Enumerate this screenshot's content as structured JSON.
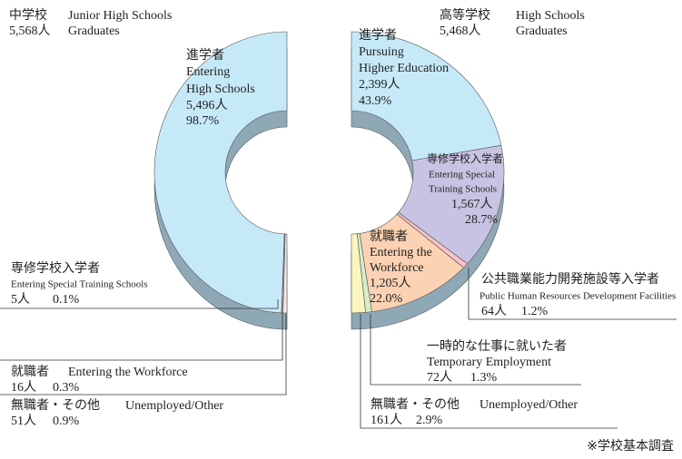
{
  "chart_data": [
    {
      "type": "pie",
      "title_ja": "中学校",
      "title_en": [
        "Junior High Schools",
        "Graduates"
      ],
      "total": 5568,
      "total_label": "5,568人",
      "segments": [
        {
          "name_lines": [
            "進学者",
            "Entering",
            "High Schools"
          ],
          "color": "#c6e9f8",
          "value": 5496,
          "value_label": "5,496人",
          "percent": 98.7,
          "percent_label": "98.7%"
        },
        {
          "name_lines": [
            "専修学校入学者",
            "Entering Special Training Schools"
          ],
          "color": "#c9c3e3",
          "value": 5,
          "value_label": "5人",
          "percent": 0.1,
          "percent_label": "0.1%"
        },
        {
          "name_lines": [
            "就職者",
            "Entering the Workforce"
          ],
          "color": "#f6c3c8",
          "value": 16,
          "value_label": "16人",
          "percent": 0.3,
          "percent_label": "0.3%"
        },
        {
          "name_lines": [
            "無職者・その他",
            "Unemployed/Other"
          ],
          "color": "#f4e9ee",
          "value": 51,
          "value_label": "51人",
          "percent": 0.9,
          "percent_label": "0.9%"
        }
      ]
    },
    {
      "type": "pie",
      "title_ja": "高等学校",
      "title_en": [
        "High Schools",
        "Graduates"
      ],
      "total": 5468,
      "total_label": "5,468人",
      "segments": [
        {
          "name_lines": [
            "進学者",
            "Pursuing",
            "Higher Education"
          ],
          "color": "#c6e9f8",
          "value": 2399,
          "value_label": "2,399人",
          "percent": 43.9,
          "percent_label": "43.9%"
        },
        {
          "name_lines": [
            "専修学校入学者",
            "Entering Special",
            "Training Schools"
          ],
          "color": "#c9c3e3",
          "value": 1567,
          "value_label": "1,567人",
          "percent": 28.7,
          "percent_label": "28.7%"
        },
        {
          "name_lines": [
            "公共職業能力開発施設等入学者",
            "Public Human Resources Development Facilities"
          ],
          "color": "#f6c3c8",
          "value": 64,
          "value_label": "64人",
          "percent": 1.2,
          "percent_label": "1.2%"
        },
        {
          "name_lines": [
            "就職者",
            "Entering the",
            "Workforce"
          ],
          "color": "#fbd2b3",
          "value": 1205,
          "value_label": "1,205人",
          "percent": 22.0,
          "percent_label": "22.0%"
        },
        {
          "name_lines": [
            "一時的な仕事に就いた者",
            "Temporary Employment"
          ],
          "color": "#d7ecc6",
          "value": 72,
          "value_label": "72人",
          "percent": 1.3,
          "percent_label": "1.3%"
        },
        {
          "name_lines": [
            "無職者・その他",
            "Unemployed/Other"
          ],
          "color": "#fbf5bf",
          "value": 161,
          "value_label": "161人",
          "percent": 2.9,
          "percent_label": "2.9%"
        }
      ]
    }
  ],
  "source": "※学校基本調査"
}
